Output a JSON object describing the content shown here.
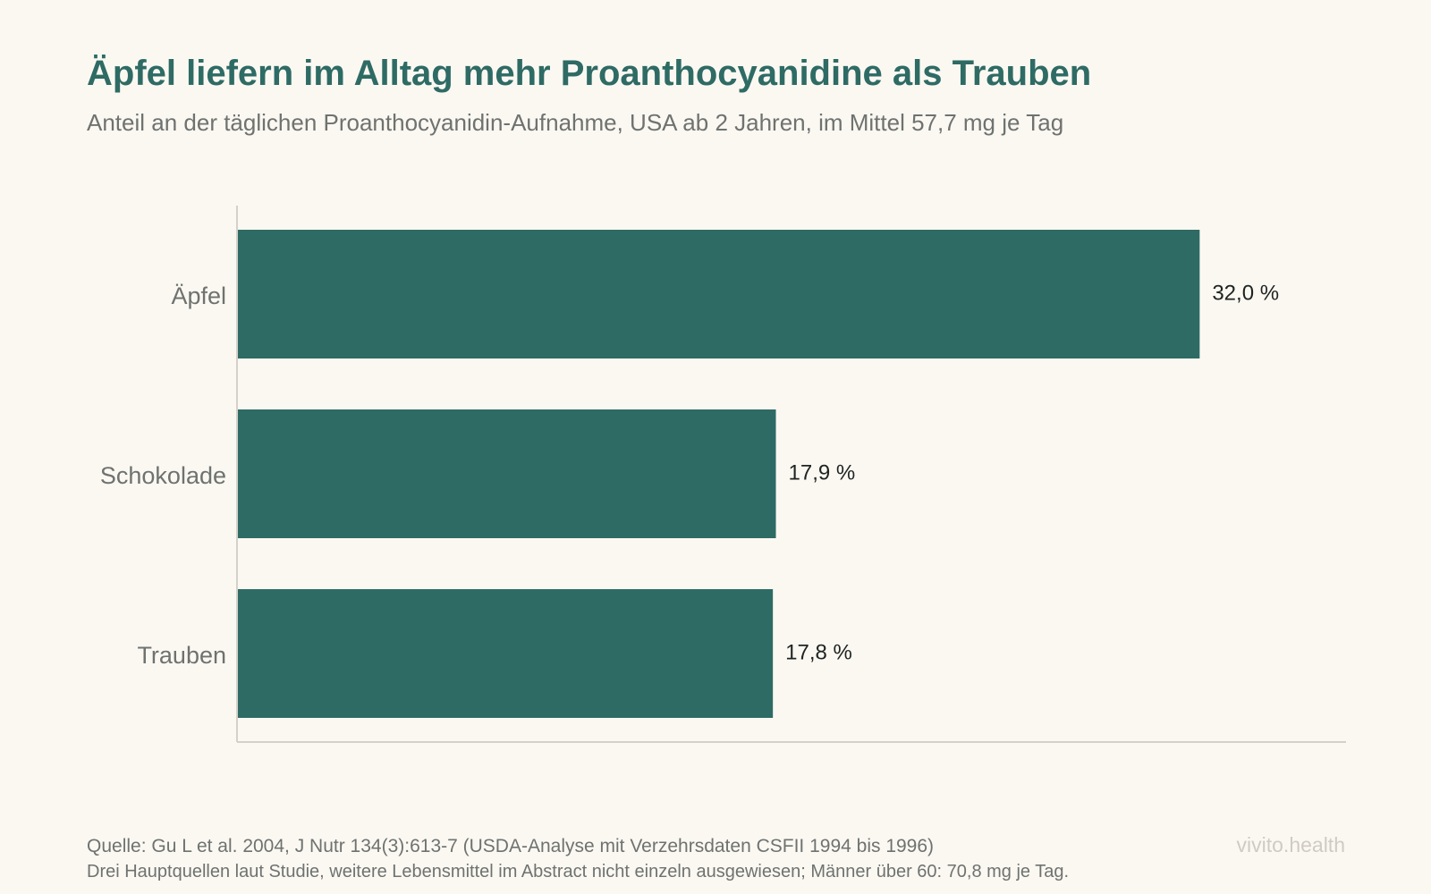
{
  "chart_data": {
    "type": "bar",
    "orientation": "horizontal",
    "title": "Äpfel liefern im Alltag mehr Proanthocyanidine als Trauben",
    "subtitle": "Anteil an der täglichen Proanthocyanidin-Aufnahme, USA ab 2 Jahren, im Mittel 57,7 mg je Tag",
    "categories": [
      "Äpfel",
      "Schokolade",
      "Trauben"
    ],
    "values": [
      32.0,
      17.9,
      17.8
    ],
    "value_labels": [
      "32,0 %",
      "17,9 %",
      "17,8 %"
    ],
    "unit": "%",
    "xlim": [
      0,
      36.9
    ],
    "grid": false,
    "legend": "none",
    "colors": {
      "bar": "#2e6b64",
      "title": "#2e6b64",
      "axis": "#d4d1cb",
      "category_text": "#6f726f",
      "value_text": "#1f2321"
    }
  },
  "footer": {
    "source": "Quelle: Gu L et al. 2004, J Nutr 134(3):613-7 (USDA-Analyse mit Verzehrsdaten CSFII 1994 bis 1996)",
    "note": "Drei Hauptquellen laut Studie, weitere Lebensmittel im Abstract nicht einzeln ausgewiesen; Männer über 60: 70,8 mg je Tag."
  },
  "brand": "vivito.health"
}
